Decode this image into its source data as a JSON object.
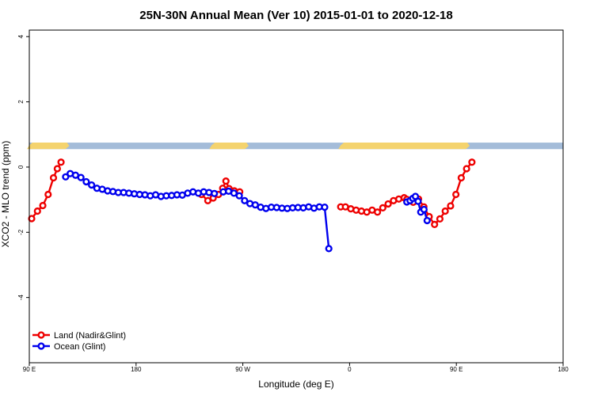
{
  "chart_data": {
    "type": "line",
    "title": "25N-30N Annual Mean (Ver 10)   2015-01-01 to 2020-12-18",
    "xlabel": "Longitude (deg E)",
    "ylabel": "XCO2 - MLO trend (ppm)",
    "xlim": [
      90,
      450
    ],
    "ylim": [
      -6,
      4.2
    ],
    "x_ticks": [
      {
        "value": 90,
        "label": "90 E"
      },
      {
        "value": 162,
        "label": "180"
      },
      {
        "value": 234,
        "label": "90 W"
      },
      {
        "value": 306,
        "label": "0"
      },
      {
        "value": 378,
        "label": "90 E"
      },
      {
        "value": 450,
        "label": "180"
      }
    ],
    "y_ticks": [
      {
        "value": 4,
        "label": "4"
      },
      {
        "value": 2,
        "label": "2"
      },
      {
        "value": 0,
        "label": "0"
      },
      {
        "value": -2,
        "label": "-2"
      },
      {
        "value": -4,
        "label": "-4"
      }
    ],
    "legend_position": "bottom-left",
    "grid": false,
    "map_strip": {
      "y_range": [
        0.55,
        0.75
      ],
      "land_color": "#f4d36e",
      "ocean_color": "#a4bcd9",
      "land_ranges": [
        [
          90,
          117
        ],
        [
          213,
          238
        ],
        [
          300,
          387
        ]
      ]
    },
    "series": [
      {
        "name": "Land (Nadir&Glint)",
        "color": "#ee0000",
        "segments": [
          [
            [
              91.6,
              -1.58
            ],
            [
              95.5,
              -1.35
            ],
            [
              99.1,
              -1.18
            ],
            [
              102.7,
              -0.84
            ],
            [
              106.3,
              -0.33
            ],
            [
              108.9,
              -0.05
            ],
            [
              111.4,
              0.15
            ]
          ],
          [
            [
              206.1,
              -0.84
            ],
            [
              210.4,
              -1.03
            ],
            [
              214,
              -0.95
            ],
            [
              217.6,
              -0.84
            ],
            [
              220.4,
              -0.65
            ],
            [
              222.6,
              -0.43
            ],
            [
              224.7,
              -0.66
            ],
            [
              228.3,
              -0.73
            ],
            [
              231.9,
              -0.76
            ]
          ],
          [
            [
              300,
              -1.22
            ],
            [
              303.2,
              -1.22
            ],
            [
              306.8,
              -1.28
            ],
            [
              310.4,
              -1.32
            ],
            [
              314,
              -1.35
            ],
            [
              317.6,
              -1.38
            ],
            [
              321.2,
              -1.32
            ],
            [
              324.8,
              -1.38
            ],
            [
              328.4,
              -1.25
            ],
            [
              332,
              -1.13
            ],
            [
              335.6,
              -1.03
            ],
            [
              339.2,
              -0.98
            ],
            [
              342.8,
              -0.94
            ],
            [
              344.6,
              -0.99
            ]
          ],
          [
            [
              348.9,
              -1.08
            ],
            [
              352.5,
              -0.98
            ],
            [
              356.1,
              -1.22
            ],
            [
              359.7,
              -1.52
            ],
            [
              363.3,
              -1.76
            ],
            [
              366.9,
              -1.59
            ],
            [
              370.5,
              -1.35
            ],
            [
              374.1,
              -1.19
            ],
            [
              377.7,
              -0.84
            ],
            [
              381.3,
              -0.33
            ],
            [
              384.9,
              -0.05
            ],
            [
              388.5,
              0.15
            ]
          ]
        ]
      },
      {
        "name": "Ocean (Glint)",
        "color": "#0000ee",
        "segments": [
          [
            [
              114.5,
              -0.3
            ],
            [
              117.6,
              -0.2
            ],
            [
              121.2,
              -0.25
            ],
            [
              124.8,
              -0.32
            ],
            [
              128.4,
              -0.45
            ],
            [
              132,
              -0.55
            ],
            [
              135.6,
              -0.65
            ],
            [
              139.2,
              -0.68
            ],
            [
              142.8,
              -0.73
            ],
            [
              146.4,
              -0.75
            ],
            [
              150,
              -0.78
            ],
            [
              153.6,
              -0.78
            ],
            [
              157.2,
              -0.8
            ],
            [
              160.8,
              -0.82
            ],
            [
              164.4,
              -0.84
            ],
            [
              168,
              -0.85
            ],
            [
              171.6,
              -0.88
            ],
            [
              175.2,
              -0.85
            ],
            [
              178.8,
              -0.9
            ],
            [
              182.4,
              -0.88
            ],
            [
              186,
              -0.87
            ],
            [
              189.6,
              -0.85
            ],
            [
              193.2,
              -0.86
            ],
            [
              196.8,
              -0.8
            ],
            [
              200.4,
              -0.76
            ],
            [
              204,
              -0.8
            ],
            [
              207.6,
              -0.76
            ],
            [
              211.2,
              -0.78
            ],
            [
              214.8,
              -0.81
            ]
          ],
          [
            [
              220.8,
              -0.76
            ],
            [
              224.4,
              -0.74
            ],
            [
              228,
              -0.8
            ],
            [
              231.6,
              -0.88
            ],
            [
              235.2,
              -1.03
            ],
            [
              238.8,
              -1.12
            ],
            [
              242.4,
              -1.16
            ],
            [
              246,
              -1.23
            ],
            [
              249.6,
              -1.27
            ],
            [
              253.2,
              -1.23
            ],
            [
              256.8,
              -1.24
            ],
            [
              260.4,
              -1.26
            ],
            [
              264,
              -1.27
            ],
            [
              267.6,
              -1.25
            ],
            [
              271.2,
              -1.24
            ],
            [
              274.8,
              -1.25
            ],
            [
              278.4,
              -1.22
            ],
            [
              282,
              -1.26
            ]
          ],
          [
            [
              285.6,
              -1.22
            ],
            [
              289.2,
              -1.23
            ],
            [
              292,
              -2.5
            ]
          ],
          [
            [
              344.6,
              -1.07
            ],
            [
              346.8,
              -1.03
            ],
            [
              348.6,
              -0.96
            ]
          ],
          [
            [
              350.4,
              -0.9
            ],
            [
              352.2,
              -1.05
            ],
            [
              354,
              -1.38
            ],
            [
              356.2,
              -1.3
            ],
            [
              358.3,
              -1.64
            ]
          ]
        ]
      }
    ]
  }
}
